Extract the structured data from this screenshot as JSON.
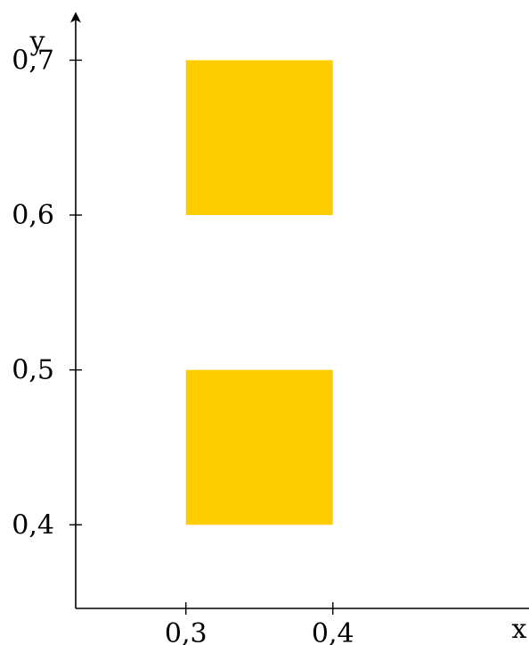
{
  "chart_data": {
    "type": "heatmap",
    "title": "",
    "xlabel": "x",
    "ylabel": "y",
    "xlim": [
      0.225,
      0.63
    ],
    "ylim": [
      0.346,
      0.73
    ],
    "x_ticks": [
      {
        "value": 0.3,
        "label": "0,3"
      },
      {
        "value": 0.4,
        "label": "0,4"
      }
    ],
    "y_ticks": [
      {
        "value": 0.4,
        "label": "0,4"
      },
      {
        "value": 0.5,
        "label": "0,5"
      },
      {
        "value": 0.6,
        "label": "0,6"
      },
      {
        "value": 0.7,
        "label": "0,7"
      }
    ],
    "grid": false,
    "legend": "none",
    "cells": [
      {
        "x0": 0.3,
        "x1": 0.4,
        "y0": 0.6,
        "y1": 0.7,
        "color": "#FFCC00"
      },
      {
        "x0": 0.3,
        "x1": 0.4,
        "y0": 0.4,
        "y1": 0.5,
        "color": "#FFCC00"
      }
    ]
  }
}
